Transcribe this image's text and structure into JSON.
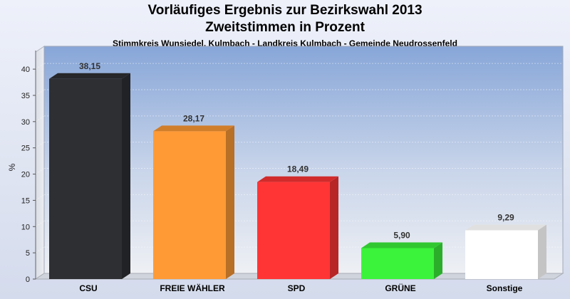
{
  "header": {
    "title_line1": "Vorläufiges Ergebnis zur Bezirkswahl 2013",
    "title_line2": "Zweitstimmen in Prozent",
    "subtitle": "Stimmkreis Wunsiedel, Kulmbach - Landkreis Kulmbach - Gemeinde Neudrossenfeld"
  },
  "chart_data": {
    "type": "bar",
    "title": "Vorläufiges Ergebnis zur Bezirkswahl 2013 — Zweitstimmen in Prozent",
    "subtitle": "Stimmkreis Wunsiedel, Kulmbach - Landkreis Kulmbach - Gemeinde Neudrossenfeld",
    "xlabel": "",
    "ylabel": "%",
    "ylim": [
      0,
      43
    ],
    "yticks": [
      0,
      5,
      10,
      15,
      20,
      25,
      30,
      35,
      40
    ],
    "grid": true,
    "categories": [
      "CSU",
      "FREIE WÄHLER",
      "SPD",
      "GRÜNE",
      "Sonstige"
    ],
    "values": [
      38.15,
      28.17,
      18.49,
      5.9,
      9.29
    ],
    "value_labels": [
      "38,15",
      "28,17",
      "18,49",
      "5,90",
      "9,29"
    ],
    "colors": [
      "#2e2f33",
      "#ff9a35",
      "#ff3535",
      "#3cf33c",
      "#ffffff"
    ]
  }
}
